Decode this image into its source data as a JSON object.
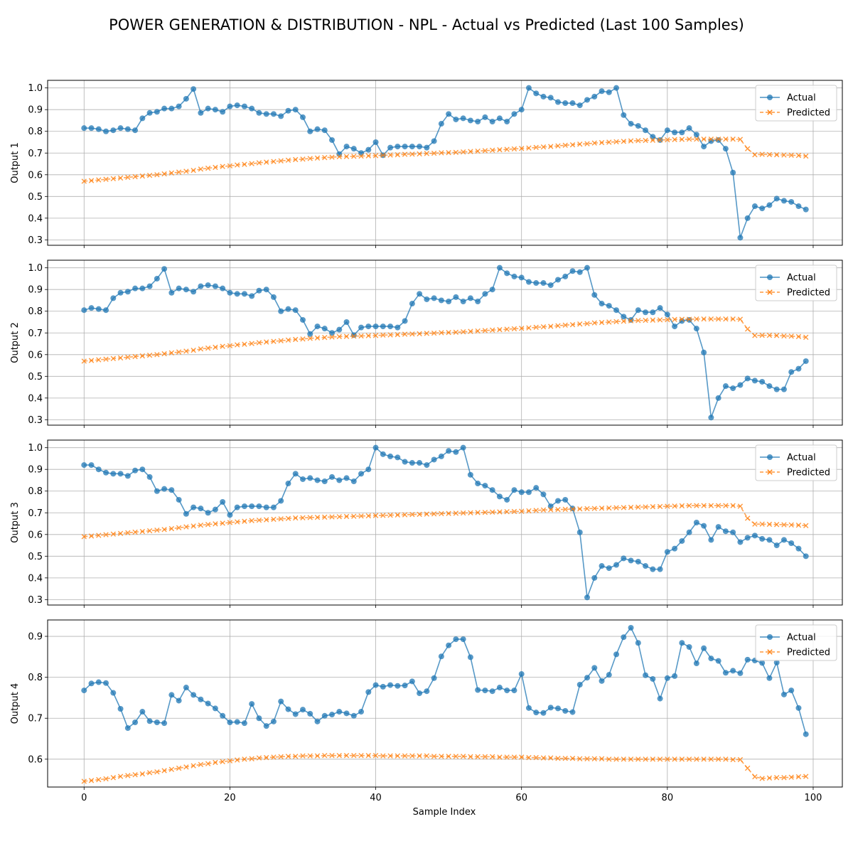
{
  "figure": {
    "title": "POWER GENERATION & DISTRIBUTION - NPL - Actual vs Predicted (Last 100 Samples)",
    "xlabel": "Sample Index"
  },
  "colors": {
    "actual": "#1f77b4",
    "predicted": "#ff7f0e",
    "grid": "#b0b0b0"
  },
  "chart_data": [
    {
      "type": "line",
      "title": "",
      "ylabel": "Output 1",
      "xlim": [
        -5,
        104
      ],
      "ylim": [
        0.275,
        1.035
      ],
      "xticks": [
        0,
        20,
        40,
        60,
        80,
        100
      ],
      "yticks": [
        0.3,
        0.4,
        0.5,
        0.6,
        0.7,
        0.8,
        0.9,
        1.0
      ],
      "grid": true,
      "legend": "top-right",
      "series": [
        {
          "name": "Actual",
          "values": [
            0.815,
            0.815,
            0.81,
            0.8,
            0.805,
            0.815,
            0.81,
            0.805,
            0.86,
            0.885,
            0.89,
            0.905,
            0.905,
            0.915,
            0.95,
            0.995,
            0.885,
            0.905,
            0.9,
            0.89,
            0.915,
            0.92,
            0.915,
            0.905,
            0.885,
            0.88,
            0.88,
            0.87,
            0.895,
            0.9,
            0.865,
            0.8,
            0.81,
            0.805,
            0.76,
            0.695,
            0.73,
            0.72,
            0.7,
            0.715,
            0.75,
            0.69,
            0.725,
            0.73,
            0.73,
            0.73,
            0.73,
            0.725,
            0.755,
            0.835,
            0.88,
            0.855,
            0.86,
            0.85,
            0.845,
            0.865,
            0.845,
            0.86,
            0.845,
            0.88,
            0.9,
            1.0,
            0.975,
            0.96,
            0.955,
            0.935,
            0.93,
            0.93,
            0.92,
            0.945,
            0.96,
            0.985,
            0.98,
            1.0,
            0.875,
            0.835,
            0.825,
            0.805,
            0.775,
            0.76,
            0.805,
            0.795,
            0.795,
            0.815,
            0.785,
            0.73,
            0.755,
            0.76,
            0.72,
            0.61,
            0.31,
            0.4,
            0.455,
            0.445,
            0.46,
            0.49,
            0.48,
            0.475,
            0.455,
            0.44
          ]
        },
        {
          "name": "Predicted",
          "values": [
            0.57,
            0.573,
            0.576,
            0.579,
            0.582,
            0.585,
            0.588,
            0.591,
            0.594,
            0.597,
            0.6,
            0.604,
            0.608,
            0.612,
            0.616,
            0.62,
            0.626,
            0.63,
            0.634,
            0.638,
            0.641,
            0.645,
            0.648,
            0.651,
            0.655,
            0.658,
            0.661,
            0.664,
            0.667,
            0.67,
            0.672,
            0.675,
            0.677,
            0.679,
            0.681,
            0.683,
            0.684,
            0.685,
            0.686,
            0.687,
            0.688,
            0.69,
            0.691,
            0.692,
            0.694,
            0.695,
            0.696,
            0.698,
            0.699,
            0.701,
            0.702,
            0.703,
            0.705,
            0.707,
            0.709,
            0.711,
            0.713,
            0.715,
            0.717,
            0.719,
            0.721,
            0.723,
            0.726,
            0.728,
            0.73,
            0.733,
            0.736,
            0.738,
            0.741,
            0.743,
            0.746,
            0.748,
            0.75,
            0.752,
            0.754,
            0.756,
            0.757,
            0.758,
            0.759,
            0.76,
            0.761,
            0.762,
            0.763,
            0.764,
            0.764,
            0.764,
            0.764,
            0.764,
            0.764,
            0.764,
            0.763,
            0.72,
            0.692,
            0.694,
            0.693,
            0.692,
            0.691,
            0.69,
            0.689,
            0.686
          ]
        }
      ]
    },
    {
      "type": "line",
      "title": "",
      "ylabel": "Output 2",
      "xlim": [
        -5,
        104
      ],
      "ylim": [
        0.275,
        1.035
      ],
      "xticks": [
        0,
        20,
        40,
        60,
        80,
        100
      ],
      "yticks": [
        0.3,
        0.4,
        0.5,
        0.6,
        0.7,
        0.8,
        0.9,
        1.0
      ],
      "grid": true,
      "legend": "top-right",
      "series": [
        {
          "name": "Actual",
          "values": [
            0.805,
            0.815,
            0.81,
            0.805,
            0.86,
            0.885,
            0.89,
            0.905,
            0.905,
            0.915,
            0.95,
            0.995,
            0.885,
            0.905,
            0.9,
            0.89,
            0.915,
            0.92,
            0.915,
            0.905,
            0.885,
            0.88,
            0.88,
            0.87,
            0.895,
            0.9,
            0.865,
            0.8,
            0.81,
            0.805,
            0.76,
            0.695,
            0.73,
            0.72,
            0.7,
            0.715,
            0.75,
            0.69,
            0.725,
            0.73,
            0.73,
            0.73,
            0.73,
            0.725,
            0.755,
            0.835,
            0.88,
            0.855,
            0.86,
            0.85,
            0.845,
            0.865,
            0.845,
            0.86,
            0.845,
            0.88,
            0.9,
            1.0,
            0.975,
            0.96,
            0.955,
            0.935,
            0.93,
            0.93,
            0.92,
            0.945,
            0.96,
            0.985,
            0.98,
            1.0,
            0.875,
            0.835,
            0.825,
            0.805,
            0.775,
            0.76,
            0.805,
            0.795,
            0.795,
            0.815,
            0.785,
            0.73,
            0.755,
            0.76,
            0.72,
            0.61,
            0.31,
            0.4,
            0.455,
            0.445,
            0.46,
            0.49,
            0.48,
            0.475,
            0.455,
            0.44,
            0.44,
            0.52,
            0.535,
            0.57
          ]
        },
        {
          "name": "Predicted",
          "values": [
            0.57,
            0.573,
            0.576,
            0.579,
            0.582,
            0.585,
            0.588,
            0.591,
            0.594,
            0.597,
            0.6,
            0.604,
            0.608,
            0.612,
            0.616,
            0.62,
            0.626,
            0.63,
            0.634,
            0.638,
            0.641,
            0.645,
            0.648,
            0.651,
            0.655,
            0.658,
            0.661,
            0.664,
            0.667,
            0.67,
            0.672,
            0.675,
            0.677,
            0.679,
            0.681,
            0.683,
            0.684,
            0.685,
            0.686,
            0.687,
            0.688,
            0.69,
            0.691,
            0.692,
            0.694,
            0.695,
            0.696,
            0.698,
            0.699,
            0.701,
            0.702,
            0.703,
            0.705,
            0.707,
            0.709,
            0.711,
            0.713,
            0.715,
            0.717,
            0.719,
            0.721,
            0.723,
            0.726,
            0.728,
            0.73,
            0.733,
            0.736,
            0.738,
            0.741,
            0.743,
            0.746,
            0.748,
            0.75,
            0.752,
            0.754,
            0.756,
            0.757,
            0.758,
            0.759,
            0.76,
            0.761,
            0.762,
            0.763,
            0.763,
            0.764,
            0.764,
            0.764,
            0.764,
            0.764,
            0.764,
            0.763,
            0.718,
            0.688,
            0.689,
            0.689,
            0.688,
            0.686,
            0.685,
            0.683,
            0.68
          ]
        }
      ]
    },
    {
      "type": "line",
      "title": "",
      "ylabel": "Output 3",
      "xlim": [
        -5,
        104
      ],
      "ylim": [
        0.275,
        1.035
      ],
      "xticks": [
        0,
        20,
        40,
        60,
        80,
        100
      ],
      "yticks": [
        0.3,
        0.4,
        0.5,
        0.6,
        0.7,
        0.8,
        0.9,
        1.0
      ],
      "grid": true,
      "legend": "top-right",
      "series": [
        {
          "name": "Actual",
          "values": [
            0.92,
            0.92,
            0.9,
            0.885,
            0.88,
            0.88,
            0.87,
            0.895,
            0.9,
            0.865,
            0.8,
            0.81,
            0.805,
            0.76,
            0.695,
            0.725,
            0.72,
            0.7,
            0.715,
            0.75,
            0.69,
            0.725,
            0.73,
            0.73,
            0.73,
            0.725,
            0.725,
            0.755,
            0.835,
            0.88,
            0.855,
            0.86,
            0.85,
            0.845,
            0.865,
            0.85,
            0.86,
            0.845,
            0.88,
            0.9,
            1.0,
            0.97,
            0.96,
            0.955,
            0.935,
            0.93,
            0.93,
            0.92,
            0.945,
            0.96,
            0.985,
            0.98,
            1.0,
            0.875,
            0.835,
            0.825,
            0.805,
            0.775,
            0.76,
            0.805,
            0.795,
            0.795,
            0.815,
            0.785,
            0.73,
            0.755,
            0.76,
            0.72,
            0.61,
            0.31,
            0.4,
            0.455,
            0.445,
            0.46,
            0.49,
            0.48,
            0.475,
            0.455,
            0.44,
            0.44,
            0.52,
            0.535,
            0.57,
            0.61,
            0.655,
            0.64,
            0.575,
            0.635,
            0.615,
            0.61,
            0.565,
            0.585,
            0.595,
            0.58,
            0.575,
            0.55,
            0.575,
            0.56,
            0.535,
            0.5
          ]
        },
        {
          "name": "Predicted",
          "values": [
            0.59,
            0.593,
            0.596,
            0.599,
            0.602,
            0.605,
            0.608,
            0.611,
            0.614,
            0.617,
            0.62,
            0.623,
            0.627,
            0.631,
            0.635,
            0.639,
            0.643,
            0.646,
            0.649,
            0.652,
            0.655,
            0.658,
            0.661,
            0.664,
            0.666,
            0.668,
            0.67,
            0.672,
            0.674,
            0.676,
            0.677,
            0.678,
            0.679,
            0.68,
            0.681,
            0.682,
            0.683,
            0.684,
            0.685,
            0.686,
            0.687,
            0.688,
            0.689,
            0.69,
            0.691,
            0.692,
            0.693,
            0.694,
            0.695,
            0.696,
            0.697,
            0.698,
            0.699,
            0.7,
            0.701,
            0.702,
            0.703,
            0.704,
            0.705,
            0.706,
            0.707,
            0.709,
            0.711,
            0.713,
            0.714,
            0.715,
            0.716,
            0.717,
            0.718,
            0.719,
            0.72,
            0.721,
            0.722,
            0.723,
            0.724,
            0.725,
            0.726,
            0.727,
            0.728,
            0.729,
            0.73,
            0.731,
            0.732,
            0.733,
            0.733,
            0.733,
            0.733,
            0.733,
            0.733,
            0.733,
            0.73,
            0.675,
            0.648,
            0.648,
            0.647,
            0.646,
            0.645,
            0.644,
            0.643,
            0.641
          ]
        }
      ]
    },
    {
      "type": "line",
      "title": "",
      "ylabel": "Output 4",
      "xlim": [
        -5,
        104
      ],
      "ylim": [
        0.532,
        0.94
      ],
      "xticks": [
        0,
        20,
        40,
        60,
        80,
        100
      ],
      "yticks": [
        0.6,
        0.7,
        0.8,
        0.9
      ],
      "grid": true,
      "legend": "top-right",
      "series": [
        {
          "name": "Actual",
          "values": [
            0.768,
            0.785,
            0.788,
            0.786,
            0.762,
            0.723,
            0.676,
            0.69,
            0.716,
            0.693,
            0.69,
            0.688,
            0.757,
            0.743,
            0.775,
            0.757,
            0.746,
            0.736,
            0.724,
            0.706,
            0.69,
            0.691,
            0.688,
            0.735,
            0.7,
            0.681,
            0.692,
            0.741,
            0.722,
            0.71,
            0.721,
            0.711,
            0.692,
            0.706,
            0.709,
            0.716,
            0.712,
            0.706,
            0.716,
            0.764,
            0.781,
            0.777,
            0.781,
            0.779,
            0.78,
            0.79,
            0.761,
            0.766,
            0.798,
            0.851,
            0.878,
            0.893,
            0.893,
            0.849,
            0.769,
            0.768,
            0.766,
            0.775,
            0.768,
            0.768,
            0.808,
            0.725,
            0.714,
            0.713,
            0.726,
            0.724,
            0.718,
            0.715,
            0.782,
            0.799,
            0.823,
            0.791,
            0.806,
            0.856,
            0.898,
            0.921,
            0.884,
            0.805,
            0.796,
            0.748,
            0.798,
            0.803,
            0.884,
            0.874,
            0.834,
            0.871,
            0.846,
            0.84,
            0.811,
            0.816,
            0.81,
            0.843,
            0.841,
            0.835,
            0.798,
            0.836,
            0.758,
            0.768,
            0.725,
            0.661
          ]
        },
        {
          "name": "Predicted",
          "values": [
            0.546,
            0.548,
            0.55,
            0.552,
            0.555,
            0.558,
            0.56,
            0.562,
            0.564,
            0.567,
            0.569,
            0.572,
            0.575,
            0.578,
            0.581,
            0.584,
            0.587,
            0.589,
            0.592,
            0.594,
            0.596,
            0.598,
            0.6,
            0.601,
            0.603,
            0.604,
            0.605,
            0.606,
            0.607,
            0.607,
            0.608,
            0.608,
            0.608,
            0.609,
            0.609,
            0.609,
            0.609,
            0.609,
            0.609,
            0.609,
            0.609,
            0.608,
            0.608,
            0.608,
            0.608,
            0.608,
            0.608,
            0.608,
            0.607,
            0.607,
            0.607,
            0.607,
            0.607,
            0.606,
            0.606,
            0.606,
            0.606,
            0.605,
            0.605,
            0.605,
            0.605,
            0.604,
            0.604,
            0.603,
            0.603,
            0.602,
            0.602,
            0.602,
            0.601,
            0.601,
            0.601,
            0.601,
            0.6,
            0.6,
            0.6,
            0.6,
            0.6,
            0.6,
            0.6,
            0.6,
            0.6,
            0.6,
            0.6,
            0.6,
            0.6,
            0.6,
            0.6,
            0.6,
            0.6,
            0.599,
            0.599,
            0.578,
            0.557,
            0.553,
            0.554,
            0.555,
            0.555,
            0.556,
            0.557,
            0.558
          ]
        }
      ]
    }
  ]
}
